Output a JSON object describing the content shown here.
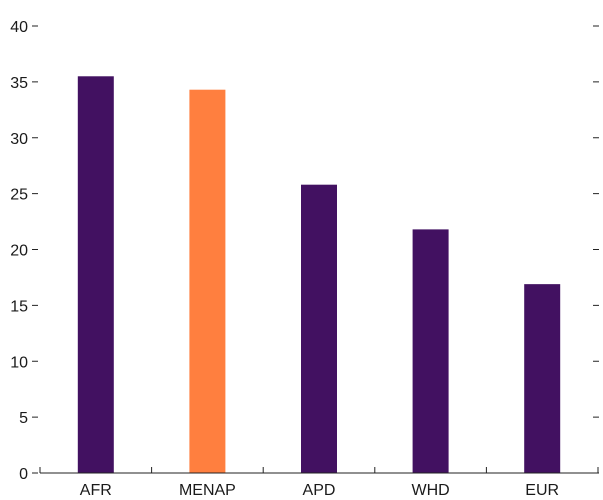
{
  "chart_data": {
    "type": "bar",
    "title": "",
    "xlabel": "",
    "ylabel": "",
    "categories": [
      "AFR",
      "MENAP",
      "APD",
      "WHD",
      "EUR"
    ],
    "values": [
      35.5,
      34.3,
      25.8,
      21.8,
      16.9
    ],
    "highlight_category": "MENAP",
    "ylim": [
      0,
      40
    ],
    "yticks": [
      0,
      5,
      10,
      15,
      20,
      25,
      30,
      35,
      40
    ],
    "grid": false,
    "legend": "none",
    "colors": {
      "bar": "#421161",
      "highlight": "#FF7F3F",
      "axis": "#222222",
      "text": "#1a1a1a"
    }
  }
}
